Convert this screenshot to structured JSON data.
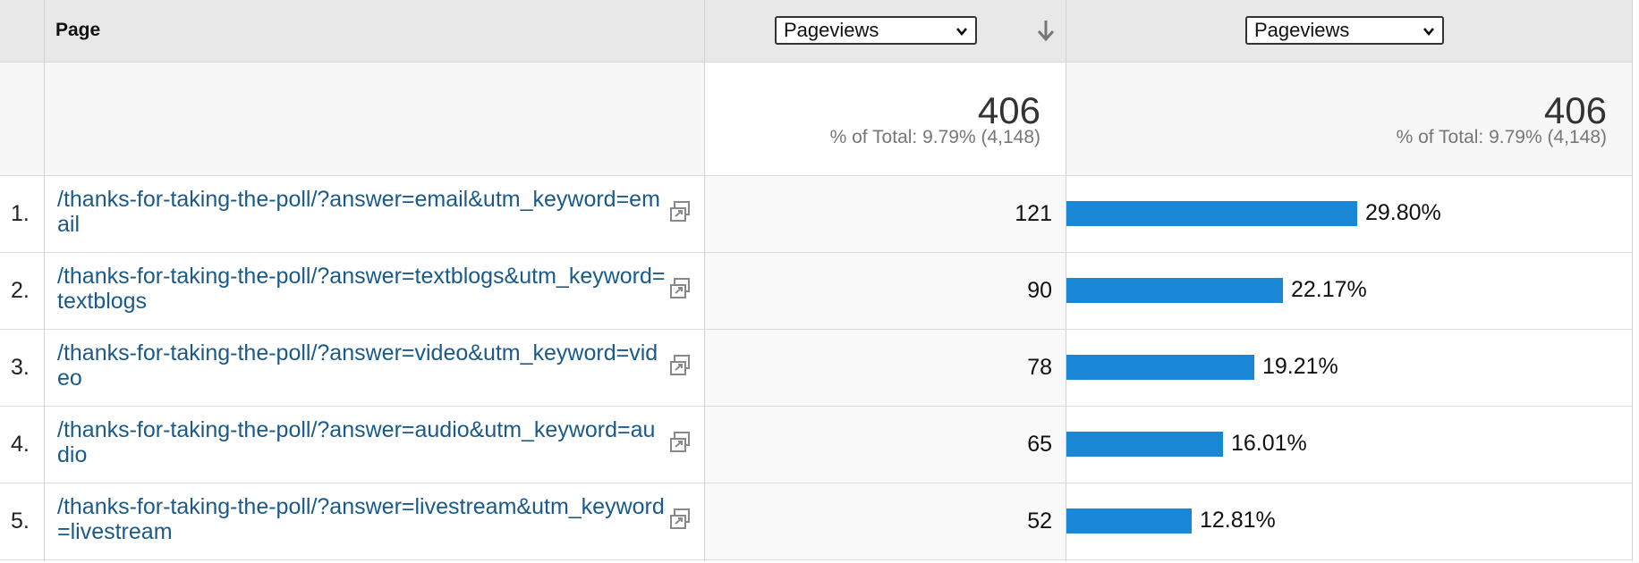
{
  "header": {
    "page_label": "Page",
    "primary_metric": "Pageviews",
    "comparison_metric": "Pageviews"
  },
  "totals": {
    "primary": {
      "value": "406",
      "pct": "% of Total: 9.79% (4,148)"
    },
    "comparison": {
      "value": "406",
      "pct": "% of Total: 9.79% (4,148)"
    }
  },
  "colors": {
    "bar": "#1a86d6",
    "link": "#1a5a8a"
  },
  "icons": {
    "open_page": "open-in-new-window-icon",
    "sort": "sort-descending-icon",
    "dropdown": "chevron-down-icon"
  },
  "rows": [
    {
      "num": "1.",
      "page": "/thanks-for-taking-the-poll/?answer=email&utm_keyword=email",
      "value": "121",
      "pct_label": "29.80%",
      "share": 0.298
    },
    {
      "num": "2.",
      "page": "/thanks-for-taking-the-poll/?answer=textblogs&utm_keyword=textblogs",
      "value": "90",
      "pct_label": "22.17%",
      "share": 0.2217
    },
    {
      "num": "3.",
      "page": "/thanks-for-taking-the-poll/?answer=video&utm_keyword=video",
      "value": "78",
      "pct_label": "19.21%",
      "share": 0.1921
    },
    {
      "num": "4.",
      "page": "/thanks-for-taking-the-poll/?answer=audio&utm_keyword=audio",
      "value": "65",
      "pct_label": "16.01%",
      "share": 0.1601
    },
    {
      "num": "5.",
      "page": "/thanks-for-taking-the-poll/?answer=livestream&utm_keyword=livestream",
      "value": "52",
      "pct_label": "12.81%",
      "share": 0.1281
    }
  ]
}
